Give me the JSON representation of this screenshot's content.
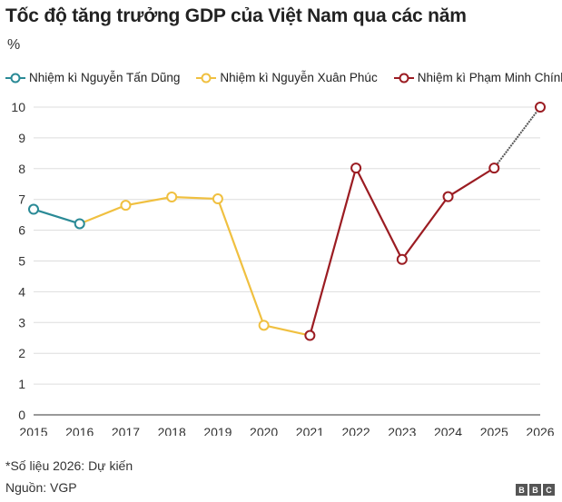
{
  "chart_data": {
    "type": "line",
    "title": "Tốc độ tăng trưởng GDP của Việt Nam qua các năm",
    "ylabel": "%",
    "xlabel": "",
    "ylim": [
      0,
      10
    ],
    "yticks": [
      "0",
      "1",
      "2",
      "3",
      "4",
      "5",
      "6",
      "7",
      "8",
      "9",
      "10"
    ],
    "x": [
      "2015",
      "2016",
      "2017",
      "2018",
      "2019",
      "2020",
      "2021",
      "2022",
      "2023",
      "2024",
      "2025",
      "2026"
    ],
    "grid": true,
    "legend": "top",
    "series": [
      {
        "name": "Nhiệm kì Nguyễn Tấn Dũng",
        "color": "#2a8a96",
        "x": [
          "2015",
          "2016"
        ],
        "values": [
          6.68,
          6.21
        ]
      },
      {
        "name": "Nhiệm kì Nguyễn Xuân Phúc",
        "color": "#f0c040",
        "x": [
          "2016",
          "2017",
          "2018",
          "2019",
          "2020",
          "2021"
        ],
        "values": [
          6.21,
          6.81,
          7.08,
          7.02,
          2.91,
          2.58
        ]
      },
      {
        "name": "Nhiệm kì Phạm Minh Chính",
        "color": "#9b1c22",
        "x": [
          "2021",
          "2022",
          "2023",
          "2024",
          "2025",
          "2026"
        ],
        "values": [
          2.58,
          8.02,
          5.05,
          7.09,
          8.02,
          10
        ]
      }
    ],
    "projection_color": "#555555"
  },
  "footnote": "*Số liệu 2026: Dự kiến",
  "source": "Nguồn: VGP",
  "logo": [
    "B",
    "B",
    "C"
  ]
}
